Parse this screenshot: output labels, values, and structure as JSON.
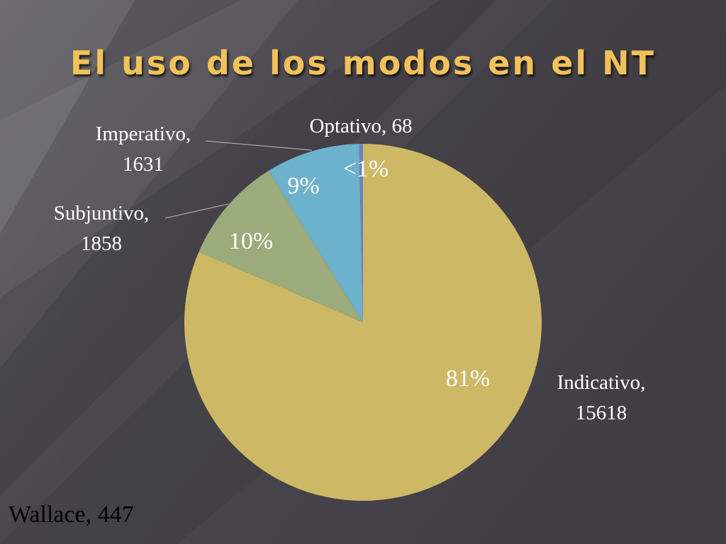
{
  "slide": {
    "title": "El uso de los modos en el NT",
    "source_note": "Wallace, 447"
  },
  "colors": {
    "title": "#f2c25a",
    "label_text": "#ffffff",
    "leader_line": "#a6a6a6"
  },
  "chart_data": {
    "type": "pie",
    "title": "",
    "series": [
      {
        "name": "Indicativo",
        "value": 15618,
        "percent_label": "81%",
        "color": "#cdb866",
        "name_label": "Indicativo,",
        "value_label": "15618"
      },
      {
        "name": "Subjuntivo",
        "value": 1858,
        "percent_label": "10%",
        "color": "#9bab7b",
        "name_label": "Subjuntivo,",
        "value_label": "1858"
      },
      {
        "name": "Imperativo",
        "value": 1631,
        "percent_label": "9%",
        "color": "#6db2cd",
        "name_label": "Imperativo,",
        "value_label": "1631"
      },
      {
        "name": "Optativo",
        "value": 68,
        "percent_label": "<1%",
        "color": "#6e7fc4",
        "name_label": "Optativo, 68",
        "value_label": ""
      }
    ],
    "legend": "none",
    "labels": "outside with leader lines; percentages inside slices"
  }
}
